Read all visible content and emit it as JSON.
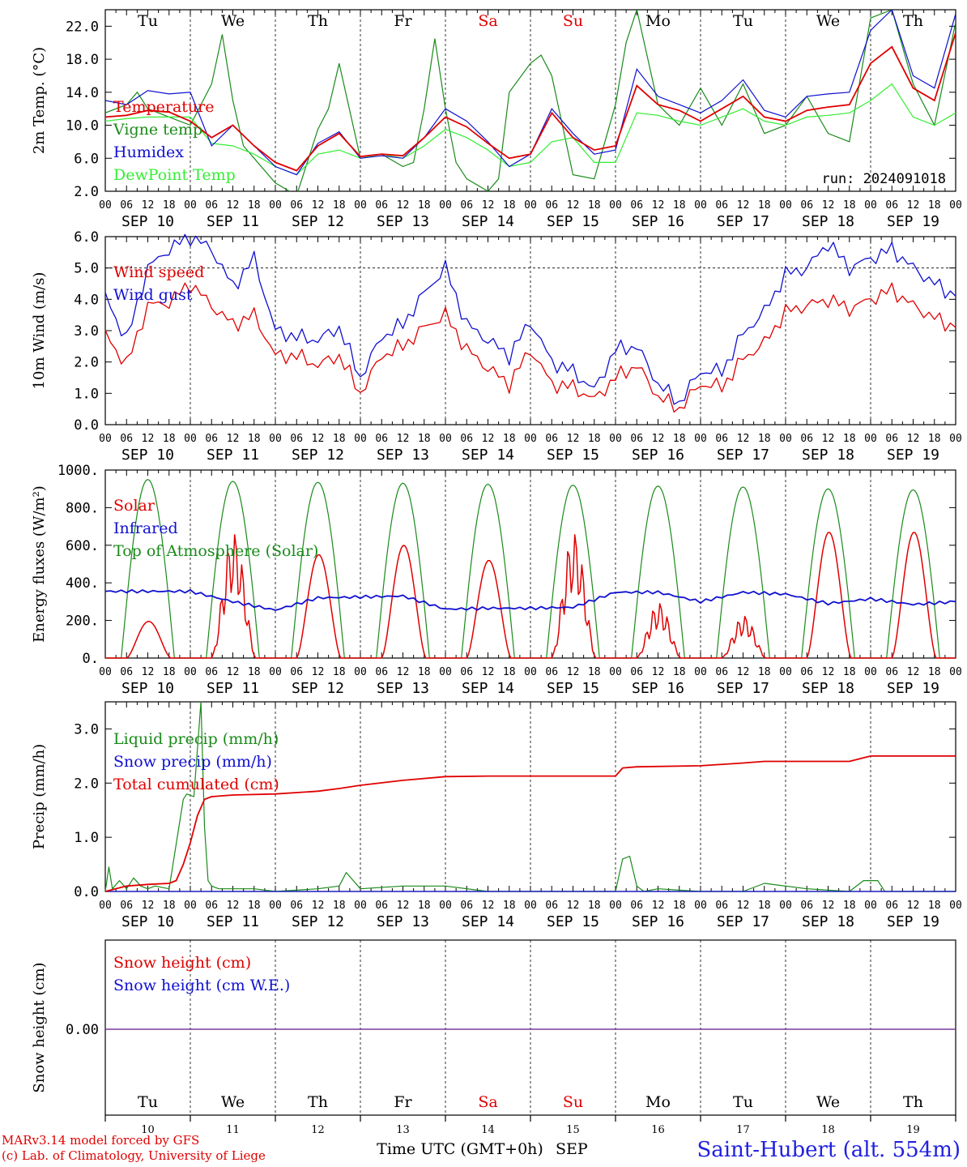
{
  "window": {
    "start_label": "SEP 10",
    "days": 10
  },
  "day_labels": [
    "Tu",
    "We",
    "Th",
    "Fr",
    "Sa",
    "Su",
    "Mo",
    "Tu",
    "We",
    "Th"
  ],
  "weekend_flags": [
    false,
    false,
    false,
    false,
    true,
    true,
    false,
    false,
    false,
    false
  ],
  "date_labels": [
    "SEP 10",
    "SEP 11",
    "SEP 12",
    "SEP 13",
    "SEP 14",
    "SEP 15",
    "SEP 16",
    "SEP 17",
    "SEP 18",
    "SEP 19"
  ],
  "day_numbers": [
    "10",
    "11",
    "12",
    "13",
    "14",
    "15",
    "16",
    "17",
    "18",
    "19"
  ],
  "hour_ticks": [
    "00",
    "06",
    "12",
    "18"
  ],
  "run_label": "run: 2024091018",
  "footer": {
    "credit_line1": "MARv3.14 model forced by GFS",
    "credit_line2": "(c) Lab. of Climatology, University of Liege",
    "axis_title": "Time UTC (GMT+0h)",
    "month": "SEP",
    "station": "Saint-Hubert (alt. 554m)"
  },
  "colors": {
    "red": "#e00000",
    "green": "#1a8a1a",
    "blue": "#1010d0",
    "lightgreen": "#33ee33",
    "purple": "#7a3a9a"
  },
  "chart_data": [
    {
      "type": "line",
      "ylabel": "2m Temp. (°C)",
      "ylim": [
        2,
        24
      ],
      "yticks": [
        "2.0",
        "6.0",
        "10.0",
        "14.0",
        "18.0",
        "22.0"
      ],
      "x_unit": "hours since SEP 10 00 UTC",
      "series": [
        {
          "name": "Temperature",
          "color": "red",
          "x": [
            0,
            6,
            12,
            18,
            24,
            30,
            36,
            42,
            48,
            54,
            60,
            66,
            72,
            78,
            84,
            90,
            96,
            102,
            108,
            114,
            120,
            126,
            132,
            138,
            144,
            150,
            156,
            162,
            168,
            174,
            180,
            186,
            192,
            198,
            204,
            210,
            216,
            222,
            228,
            234,
            240
          ],
          "values": [
            11.0,
            11.2,
            11.8,
            11.6,
            10.5,
            8.5,
            10.0,
            7.5,
            5.5,
            4.5,
            7.5,
            9.0,
            6.2,
            6.5,
            6.3,
            8.5,
            11.0,
            9.8,
            7.8,
            6.0,
            6.5,
            11.5,
            8.5,
            7.0,
            7.5,
            14.8,
            12.5,
            11.8,
            10.5,
            12.0,
            13.5,
            11.0,
            10.5,
            11.8,
            12.2,
            12.5,
            17.5,
            19.5,
            14.5,
            13.0,
            21.2
          ]
        },
        {
          "name": "Vigne temp",
          "color": "green",
          "x": [
            0,
            6,
            9,
            12,
            18,
            24,
            30,
            33,
            36,
            39,
            42,
            48,
            54,
            60,
            63,
            66,
            72,
            78,
            84,
            87,
            90,
            93,
            96,
            99,
            102,
            108,
            111,
            114,
            120,
            123,
            126,
            129,
            132,
            138,
            141,
            144,
            147,
            150,
            156,
            162,
            168,
            174,
            180,
            186,
            192,
            198,
            204,
            210,
            216,
            222,
            228,
            234,
            240
          ],
          "values": [
            11.5,
            12.5,
            14.0,
            12.0,
            11.0,
            10.0,
            15.0,
            21.0,
            13.0,
            7.5,
            6.0,
            3.0,
            1.5,
            9.5,
            12.0,
            17.5,
            6.0,
            6.5,
            5.0,
            5.5,
            12.0,
            20.5,
            12.0,
            5.5,
            3.5,
            2.0,
            3.5,
            14.0,
            17.5,
            18.5,
            16.0,
            10.0,
            4.0,
            3.5,
            8.0,
            12.5,
            20.0,
            24.0,
            12.5,
            10.0,
            14.5,
            10.0,
            15.0,
            9.0,
            10.0,
            13.5,
            9.0,
            8.0,
            23.0,
            24.0,
            15.0,
            10.0,
            22.5
          ]
        },
        {
          "name": "Humidex",
          "color": "blue",
          "x": [
            0,
            6,
            12,
            18,
            24,
            30,
            36,
            42,
            48,
            54,
            60,
            66,
            72,
            78,
            84,
            90,
            96,
            102,
            108,
            114,
            120,
            126,
            132,
            138,
            144,
            150,
            156,
            162,
            168,
            174,
            180,
            186,
            192,
            198,
            204,
            210,
            216,
            222,
            228,
            234,
            240
          ],
          "values": [
            13.0,
            12.5,
            14.2,
            13.8,
            14.0,
            7.5,
            10.0,
            7.5,
            5.0,
            4.0,
            7.8,
            9.2,
            6.0,
            6.3,
            6.0,
            8.5,
            12.0,
            10.5,
            8.0,
            5.0,
            6.5,
            12.0,
            9.0,
            6.5,
            7.0,
            16.8,
            13.5,
            12.5,
            11.5,
            13.0,
            15.5,
            11.8,
            11.0,
            13.5,
            13.8,
            14.0,
            21.5,
            24.0,
            16.0,
            14.5,
            23.5
          ]
        },
        {
          "name": "DewPoint Temp",
          "color": "lightgreen",
          "x": [
            0,
            6,
            12,
            18,
            24,
            30,
            36,
            42,
            48,
            54,
            60,
            66,
            72,
            78,
            84,
            90,
            96,
            102,
            108,
            114,
            120,
            126,
            132,
            138,
            144,
            150,
            156,
            162,
            168,
            174,
            180,
            186,
            192,
            198,
            204,
            210,
            216,
            222,
            228,
            234,
            240
          ],
          "values": [
            10.5,
            10.8,
            11.0,
            11.0,
            11.0,
            7.8,
            7.5,
            6.5,
            5.0,
            4.0,
            6.5,
            7.0,
            6.0,
            6.5,
            6.0,
            7.5,
            9.5,
            8.5,
            7.0,
            5.0,
            5.5,
            8.0,
            8.5,
            5.5,
            5.5,
            11.5,
            11.2,
            10.5,
            10.0,
            11.0,
            12.0,
            10.5,
            10.0,
            11.0,
            11.2,
            11.5,
            13.0,
            15.0,
            11.0,
            10.0,
            11.5
          ]
        }
      ]
    },
    {
      "type": "line",
      "ylabel": "10m Wind (m/s)",
      "ylim": [
        0,
        6
      ],
      "yticks": [
        "0.0",
        "1.0",
        "2.0",
        "3.0",
        "4.0",
        "5.0",
        "6.0"
      ],
      "ref_line": 5.0,
      "series": [
        {
          "name": "Wind speed",
          "color": "red",
          "x": [
            0,
            6,
            12,
            18,
            24,
            30,
            36,
            42,
            48,
            54,
            60,
            66,
            72,
            78,
            84,
            90,
            96,
            102,
            108,
            114,
            120,
            126,
            132,
            138,
            144,
            150,
            156,
            162,
            168,
            174,
            180,
            186,
            192,
            198,
            204,
            210,
            216,
            222,
            228,
            234,
            240
          ],
          "values": [
            2.9,
            1.9,
            3.8,
            3.9,
            4.5,
            3.8,
            3.2,
            3.5,
            2.2,
            2.2,
            1.9,
            2.2,
            1.0,
            2.2,
            2.5,
            3.1,
            3.5,
            2.4,
            1.8,
            1.3,
            2.4,
            1.3,
            1.2,
            0.8,
            1.5,
            1.9,
            0.9,
            0.5,
            1.3,
            1.2,
            2.1,
            2.6,
            3.6,
            3.8,
            4.0,
            3.7,
            4.0,
            4.3,
            3.8,
            3.4,
            3.1
          ]
        },
        {
          "name": "Wind gust",
          "color": "blue",
          "x": [
            0,
            6,
            12,
            18,
            24,
            30,
            36,
            42,
            48,
            54,
            60,
            66,
            72,
            78,
            84,
            90,
            96,
            102,
            108,
            114,
            120,
            126,
            132,
            138,
            144,
            150,
            156,
            162,
            168,
            174,
            180,
            186,
            192,
            198,
            204,
            210,
            216,
            222,
            228,
            234,
            240
          ],
          "values": [
            4.1,
            2.7,
            5.0,
            5.6,
            6.0,
            5.6,
            4.4,
            5.3,
            3.0,
            2.8,
            2.7,
            3.1,
            1.5,
            2.8,
            3.2,
            4.2,
            5.0,
            3.2,
            2.7,
            2.2,
            3.3,
            2.0,
            1.7,
            1.1,
            2.4,
            2.5,
            1.3,
            0.7,
            1.7,
            1.7,
            2.9,
            3.6,
            4.8,
            5.0,
            5.8,
            5.0,
            5.3,
            5.6,
            5.0,
            4.5,
            4.1
          ]
        }
      ]
    },
    {
      "type": "line",
      "ylabel": "Energy fluxes (W/m²)",
      "ylim": [
        0,
        1000
      ],
      "yticks": [
        "0.",
        "200.",
        "400.",
        "600.",
        "800.",
        "1000."
      ],
      "toa_peaks": [
        950,
        940,
        935,
        930,
        925,
        920,
        915,
        910,
        900,
        895
      ],
      "solar_peaks": [
        195,
        680,
        550,
        600,
        520,
        680,
        300,
        230,
        670,
        670
      ],
      "series": [
        {
          "name": "Solar",
          "color": "red"
        },
        {
          "name": "Infrared",
          "color": "blue",
          "x": [
            0,
            24,
            36,
            48,
            60,
            72,
            84,
            96,
            108,
            120,
            132,
            144,
            156,
            168,
            180,
            192,
            204,
            216,
            228,
            240
          ],
          "values": [
            355,
            355,
            300,
            255,
            320,
            325,
            330,
            260,
            265,
            265,
            270,
            350,
            350,
            300,
            350,
            340,
            290,
            315,
            285,
            300
          ]
        },
        {
          "name": "Top of Atmosphere (Solar)",
          "color": "green"
        }
      ]
    },
    {
      "type": "line",
      "ylabel": "Precip (mm/h)",
      "ylim": [
        0,
        3.5
      ],
      "yticks": [
        "0.0",
        "1.0",
        "2.0",
        "3.0"
      ],
      "series": [
        {
          "name": "Liquid precip (mm/h)",
          "color": "green",
          "x": [
            0,
            1,
            2,
            4,
            6,
            8,
            10,
            12,
            14,
            18,
            22,
            23,
            25,
            27,
            28,
            29,
            30,
            32,
            36,
            42,
            48,
            60,
            66,
            68,
            72,
            84,
            96,
            108,
            120,
            144,
            146,
            148,
            150,
            152,
            156,
            168,
            180,
            186,
            198,
            210,
            214,
            216,
            218,
            220,
            228,
            240
          ],
          "values": [
            0.0,
            0.45,
            0.05,
            0.2,
            0.05,
            0.25,
            0.1,
            0.05,
            0.1,
            0.05,
            1.7,
            1.8,
            1.75,
            3.5,
            1.2,
            0.2,
            0.1,
            0.05,
            0.05,
            0.05,
            0.0,
            0.05,
            0.1,
            0.35,
            0.05,
            0.1,
            0.1,
            0.0,
            0.0,
            0.0,
            0.6,
            0.65,
            0.1,
            0.0,
            0.05,
            0.0,
            0.0,
            0.15,
            0.05,
            0.0,
            0.2,
            0.2,
            0.2,
            0.0,
            0.0,
            0.0
          ]
        },
        {
          "name": "Snow precip (mm/h)",
          "color": "blue",
          "x": [
            0,
            240
          ],
          "values": [
            0,
            0
          ]
        },
        {
          "name": "Total cumulated (cm)",
          "color": "red",
          "x": [
            0,
            6,
            12,
            18,
            20,
            22,
            24,
            26,
            28,
            30,
            36,
            48,
            60,
            66,
            72,
            84,
            96,
            108,
            120,
            144,
            146,
            150,
            168,
            180,
            186,
            198,
            210,
            216,
            222,
            240
          ],
          "values": [
            0.0,
            0.1,
            0.13,
            0.15,
            0.2,
            0.5,
            0.9,
            1.4,
            1.7,
            1.75,
            1.78,
            1.8,
            1.85,
            1.9,
            1.96,
            2.05,
            2.12,
            2.13,
            2.13,
            2.13,
            2.28,
            2.3,
            2.32,
            2.37,
            2.4,
            2.4,
            2.4,
            2.5,
            2.5,
            2.5
          ]
        }
      ]
    },
    {
      "type": "line",
      "ylabel": "Snow height (cm)",
      "yticks": [
        "0.00"
      ],
      "series": [
        {
          "name": "Snow height (cm)",
          "color": "red",
          "x": [
            0,
            240
          ],
          "values": [
            0,
            0
          ]
        },
        {
          "name": "Snow height (cm W.E.)",
          "color": "blue",
          "x": [
            0,
            240
          ],
          "values": [
            0,
            0
          ]
        }
      ]
    }
  ]
}
